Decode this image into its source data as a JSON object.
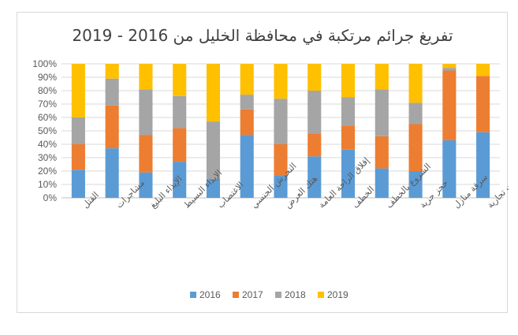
{
  "chart_data": {
    "type": "bar",
    "stacked": "percent",
    "title": "تفريغ جرائم مرتكبة في محافظة الخليل من 2016 - 2019",
    "xlabel": "",
    "ylabel": "",
    "ylim": [
      0,
      100
    ],
    "y_ticks": [
      "0%",
      "10%",
      "20%",
      "30%",
      "40%",
      "50%",
      "60%",
      "70%",
      "80%",
      "90%",
      "100%"
    ],
    "grid": true,
    "legend_position": "bottom",
    "categories": [
      "القتل",
      "مشاجرات",
      "الإيذاء البليغ",
      "الإيذاء البسيط",
      "الاغتصاب",
      "التحرش الجنسي",
      "هتك العرض",
      "إقلاق الراحة العامة",
      "الخطف",
      "الشروع بالخطف",
      "حجز حرية",
      "سرقة منازل",
      "سرقة محلات تجارية"
    ],
    "series": [
      {
        "name": "2016",
        "color": "#5b9bd5",
        "values": [
          21,
          37,
          19,
          27,
          14,
          47,
          17,
          31,
          36,
          22,
          20,
          43,
          49
        ]
      },
      {
        "name": "2017",
        "color": "#ed7d31",
        "values": [
          19,
          32,
          28,
          25,
          0,
          19,
          23,
          17,
          18,
          24,
          35,
          52,
          42
        ]
      },
      {
        "name": "2018",
        "color": "#a5a5a5",
        "values": [
          20,
          20,
          34,
          24,
          43,
          11,
          34,
          32,
          21,
          35,
          16,
          2,
          0
        ]
      },
      {
        "name": "2019",
        "color": "#ffc000",
        "values": [
          40,
          11,
          19,
          24,
          43,
          23,
          26,
          20,
          25,
          19,
          29,
          3,
          9
        ]
      }
    ]
  }
}
